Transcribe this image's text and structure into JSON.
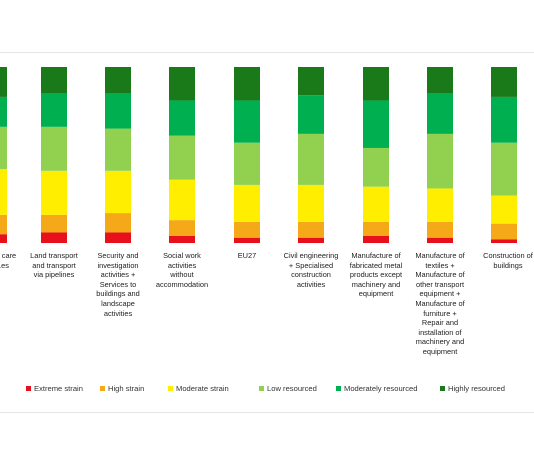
{
  "chart_data": {
    "type": "bar",
    "stacked": true,
    "normalized": true,
    "categories": [
      "...al care\n...es",
      "Land transport\nand transport\nvia pipelines",
      "Security and\ninvestigation\nactivities +\nServices to\nbuildings and\nlandscape\nactivities",
      "Social work\nactivities\nwithout\naccommodation",
      "EU27",
      "Civil engineering\n+ Specialised\nconstruction\nactivities",
      "Manufacture of\nfabricated metal\nproducts except\nmachinery and\nequipment",
      "Manufacture of\ntextiles +\nManufacture of\nother transport\nequipment +\nManufacture of\nfurniture +\nRepair and\ninstallation of\nmachinery and\nequipment",
      "Construction of\nbuildings"
    ],
    "series": [
      {
        "name": "Extreme strain",
        "color": "#e8101a",
        "values": [
          5,
          6,
          6,
          4,
          3,
          3,
          4,
          3,
          2
        ]
      },
      {
        "name": "High strain",
        "color": "#f5a818",
        "values": [
          11,
          10,
          11,
          9,
          9,
          9,
          8,
          9,
          9
        ]
      },
      {
        "name": "Moderate strain",
        "color": "#ffee00",
        "values": [
          26,
          25,
          24,
          23,
          21,
          21,
          20,
          19,
          16
        ]
      },
      {
        "name": "Low resourced",
        "color": "#92d050",
        "values": [
          24,
          25,
          24,
          25,
          24,
          29,
          22,
          31,
          30
        ]
      },
      {
        "name": "Moderately resourced",
        "color": "#00b050",
        "values": [
          17,
          19,
          20,
          20,
          24,
          22,
          27,
          23,
          26
        ]
      },
      {
        "name": "Highly resourced",
        "color": "#1a7a1a",
        "values": [
          17,
          15,
          15,
          19,
          19,
          16,
          19,
          15,
          17
        ]
      }
    ],
    "ylim": [
      0,
      100
    ],
    "grid": false,
    "legend_position": "bottom"
  }
}
